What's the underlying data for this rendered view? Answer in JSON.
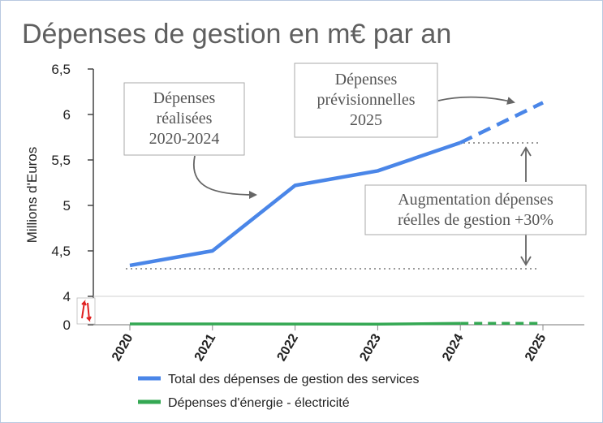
{
  "chart_data": {
    "type": "line",
    "title": "Dépenses de gestion en m€ par an",
    "ylabel": "Millions d'Euros",
    "xlabel": "",
    "categories": [
      "2020",
      "2021",
      "2022",
      "2023",
      "2024",
      "2025"
    ],
    "y_axis_break": {
      "lower_range": [
        0,
        4
      ],
      "upper_range": [
        4,
        6.5
      ]
    },
    "y_ticks": [
      "0",
      "4",
      "4,5",
      "5",
      "5,5",
      "6",
      "6,5"
    ],
    "grid": false,
    "legend_position": "bottom",
    "series": [
      {
        "name": "Total des dépenses de gestion des services",
        "color": "#4a86e8",
        "values": [
          4.34,
          4.5,
          5.22,
          5.38,
          5.69,
          6.13
        ],
        "forecast_from_index": 4
      },
      {
        "name": "Dépenses d'énergie - électricité",
        "color": "#34a853",
        "values": [
          0.12,
          0.12,
          0.1,
          0.08,
          0.2,
          0.2
        ],
        "forecast_from_index": 4
      }
    ],
    "annotations": [
      {
        "text": [
          "Dépenses",
          "réalisées",
          "2020-2024"
        ]
      },
      {
        "text": [
          "Dépenses",
          "prévisionnelles",
          "2025"
        ]
      },
      {
        "text": [
          "Augmentation dépenses",
          "réelles de gestion +30%"
        ]
      }
    ]
  }
}
